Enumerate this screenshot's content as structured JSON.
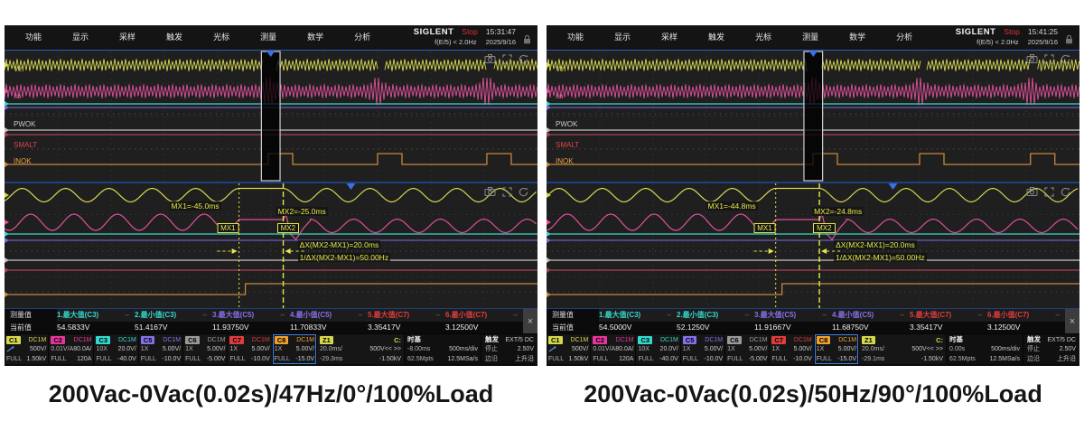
{
  "colors": {
    "yellow": "#d6d84e",
    "pink": "#e0519c",
    "cyan": "#3fd4c8",
    "purple": "#7b6ce0",
    "gray_line": "#c4c4c4",
    "crimson": "#a84055",
    "orange": "#c8883c",
    "cursor": "#e8e84a",
    "trigger_blue": "#3e6fe0",
    "grid": "#343434",
    "plot_bg": "#1f1f1f"
  },
  "menu": {
    "items": [
      "功能",
      "显示",
      "采样",
      "触发",
      "光标",
      "测量",
      "数学",
      "分析"
    ]
  },
  "signals": {
    "vin": "Vin",
    "iin": "Iin",
    "pwok": "PWOK",
    "smalt": "SMALT",
    "inok": "INOK"
  },
  "channel_bar": {
    "channels": [
      {
        "id": "C1",
        "color": "#d6d84e",
        "coupling": "DC1M",
        "l2l": "",
        "l2r": "500V/",
        "l3l": "FULL",
        "l3r": "1.50kV",
        "probe": true,
        "highlight": false
      },
      {
        "id": "C2",
        "color": "#e8359b",
        "coupling": "DC1M",
        "l2l": "0.01V/A",
        "l2r": "80.0A/",
        "l3l": "FULL",
        "l3r": "120A",
        "probe": false,
        "highlight": false
      },
      {
        "id": "C3",
        "color": "#35d8cc",
        "coupling": "DC1M",
        "l2l": "10X",
        "l2r": "20.0V/",
        "l3l": "FULL",
        "l3r": "-40.0V",
        "probe": false,
        "highlight": false
      },
      {
        "id": "C5",
        "color": "#8372e8",
        "coupling": "DC1M",
        "l2l": "1X",
        "l2r": "5.00V/",
        "l3l": "FULL",
        "l3r": "-10.0V",
        "probe": false,
        "highlight": false
      },
      {
        "id": "C6",
        "color": "#9a9a9a",
        "coupling": "DC1M",
        "l2l": "1X",
        "l2r": "5.00V/",
        "l3l": "FULL",
        "l3r": "-5.00V",
        "probe": false,
        "highlight": false
      },
      {
        "id": "C7",
        "color": "#e03c3c",
        "coupling": "DC1M",
        "l2l": "1X",
        "l2r": "5.00V/",
        "l3l": "FULL",
        "l3r": "-10.0V",
        "probe": false,
        "highlight": false
      },
      {
        "id": "C8",
        "color": "#f0a030",
        "coupling": "DC1M",
        "l2l": "1X",
        "l2r": "5.00V/",
        "l3l": "FULL",
        "l3r": "-15.0V",
        "probe": false,
        "highlight": true
      }
    ]
  },
  "scopes": [
    {
      "header": {
        "brand": "SIGLENT",
        "status": "Stop",
        "time": "15:31:47",
        "freq": "f(E/5) < 2.0Hz",
        "date": "2025/9/16"
      },
      "cursors": {
        "mx1_label": "MX1=-45.0ms",
        "mx2_label": "MX2=-25.0ms",
        "mx1_box": "MX1",
        "mx2_box": "MX2",
        "dx": "ΔX(MX2-MX1)=20.0ms",
        "inv_dx": "1/ΔX(MX2-MX1)=50.00Hz"
      },
      "measure": {
        "col_header": "测量值",
        "row_header": "当前值",
        "items": [
          {
            "label": "1.最大值(C3)",
            "value": "54.5833V",
            "color": "#35d8cc"
          },
          {
            "label": "2.最小值(C3)",
            "value": "51.4167V",
            "color": "#35d8cc"
          },
          {
            "label": "3.最大值(C5)",
            "value": "11.93750V",
            "color": "#8372e8"
          },
          {
            "label": "4.最小值(C5)",
            "value": "11.70833V",
            "color": "#8372e8"
          },
          {
            "label": "5.最大值(C7)",
            "value": "3.35417V",
            "color": "#e03c3c"
          },
          {
            "label": "6.最小值(C7)",
            "value": "3.12500V",
            "color": "#e03c3c"
          }
        ],
        "close": "×"
      },
      "z1": {
        "id": "Z1",
        "src": "C:",
        "scale": "20.0ms/",
        "pan": "500V<< >>",
        "delay": "-29.3ms",
        "offset": "-1.50kV"
      },
      "timebase": {
        "title": "时基",
        "delay": "-8.00ms",
        "scale": "500ms/div",
        "mem": "62.5Mpts",
        "rate": "12.5MSa/s"
      },
      "trigger": {
        "title": "触发",
        "mode": "停止",
        "type": "边沿",
        "source": "EXT/5 DC",
        "level": "2.50V",
        "slope": "上升沿"
      },
      "geom": {
        "mx1": 0.44,
        "mx2": 0.523,
        "win1": 0.482,
        "win2": 0.517,
        "tri_zoom": 0.65,
        "events": [
          0.495,
          0.7,
          0.905
        ]
      }
    },
    {
      "header": {
        "brand": "SIGLENT",
        "status": "Stop",
        "time": "15:41:25",
        "freq": "f(E/5) < 2.0Hz",
        "date": "2025/9/16"
      },
      "cursors": {
        "mx1_label": "MX1=-44.8ms",
        "mx2_label": "MX2=-24.8ms",
        "mx1_box": "MX1",
        "mx2_box": "MX2",
        "dx": "ΔX(MX2-MX1)=20.0ms",
        "inv_dx": "1/ΔX(MX2-MX1)=50.00Hz"
      },
      "measure": {
        "col_header": "测量值",
        "row_header": "当前值",
        "items": [
          {
            "label": "1.最大值(C3)",
            "value": "54.5000V",
            "color": "#35d8cc"
          },
          {
            "label": "2.最小值(C3)",
            "value": "52.1250V",
            "color": "#35d8cc"
          },
          {
            "label": "3.最大值(C5)",
            "value": "11.91667V",
            "color": "#8372e8"
          },
          {
            "label": "4.最小值(C5)",
            "value": "11.68750V",
            "color": "#8372e8"
          },
          {
            "label": "5.最大值(C7)",
            "value": "3.35417V",
            "color": "#e03c3c"
          },
          {
            "label": "6.最小值(C7)",
            "value": "3.12500V",
            "color": "#e03c3c"
          }
        ],
        "close": "×"
      },
      "z1": {
        "id": "Z1",
        "src": "C:",
        "scale": "20.0ms/",
        "pan": "500V<< >>",
        "delay": "-29.1ms",
        "offset": "-1.50kV"
      },
      "timebase": {
        "title": "时基",
        "delay": "0.00s",
        "scale": "500ms/div",
        "mem": "62.5Mpts",
        "rate": "12.5MSa/s"
      },
      "trigger": {
        "title": "触发",
        "mode": "停止",
        "type": "边沿",
        "source": "EXT/5 DC",
        "level": "2.50V",
        "slope": "上升沿"
      },
      "geom": {
        "mx1": 0.43,
        "mx2": 0.512,
        "win1": 0.483,
        "win2": 0.518,
        "tri_zoom": 0.65,
        "events": [
          0.5,
          0.7,
          0.908
        ]
      }
    }
  ],
  "captions": {
    "left": "200Vac-0Vac(0.02s)/47Hz/0°/100%Load",
    "right": "200Vac-0Vac(0.02s)/50Hz/90°/100%Load"
  }
}
